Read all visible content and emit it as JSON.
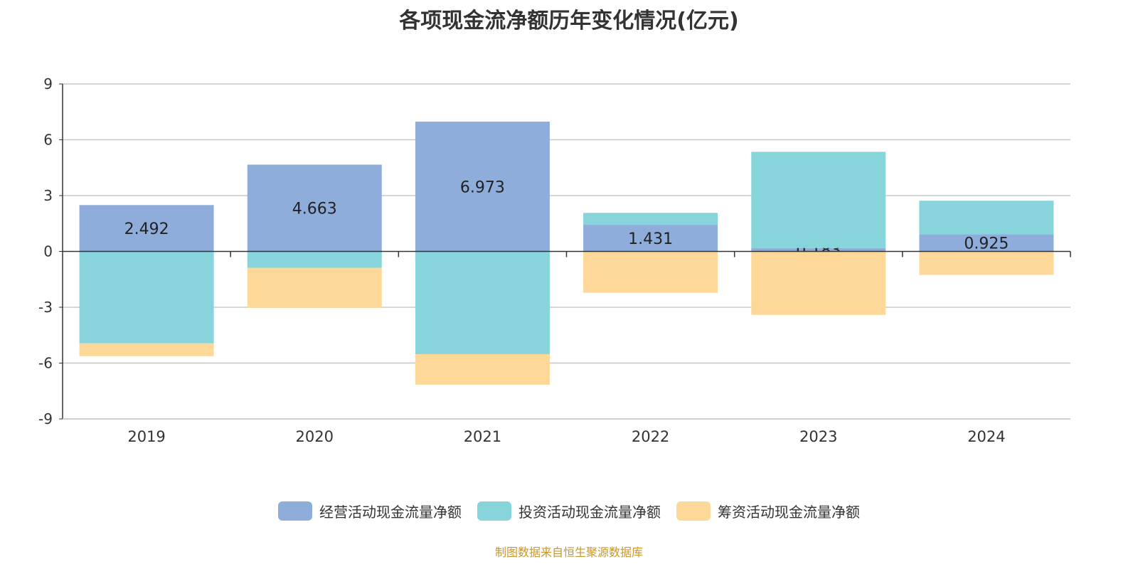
{
  "chart_data": {
    "type": "bar",
    "stacked": true,
    "title": "各项现金流净额历年变化情况(亿元)",
    "categories": [
      "2019",
      "2020",
      "2021",
      "2022",
      "2023",
      "2024"
    ],
    "ylim": [
      -9,
      9
    ],
    "yticks": [
      9,
      6,
      3,
      0,
      -3,
      -6,
      -9
    ],
    "grid": true,
    "legend_position": "bottom",
    "series": [
      {
        "name": "经营活动现金流量净额",
        "color": "#8eaddb",
        "values": [
          2.492,
          4.663,
          6.973,
          1.431,
          0.183,
          0.925
        ],
        "labels": [
          "2.492",
          "4.663",
          "6.973",
          "1.431",
          "0.183",
          "0.925"
        ]
      },
      {
        "name": "投资活动现金流量净额",
        "color": "#87d5da",
        "values": [
          -4.94,
          -0.88,
          -5.52,
          0.64,
          5.17,
          1.8
        ]
      },
      {
        "name": "筹资活动现金流量净额",
        "color": "#fed899",
        "values": [
          -0.69,
          -2.15,
          -1.64,
          -2.22,
          -3.41,
          -1.26
        ]
      }
    ]
  },
  "source": "制图数据来自恒生聚源数据库"
}
